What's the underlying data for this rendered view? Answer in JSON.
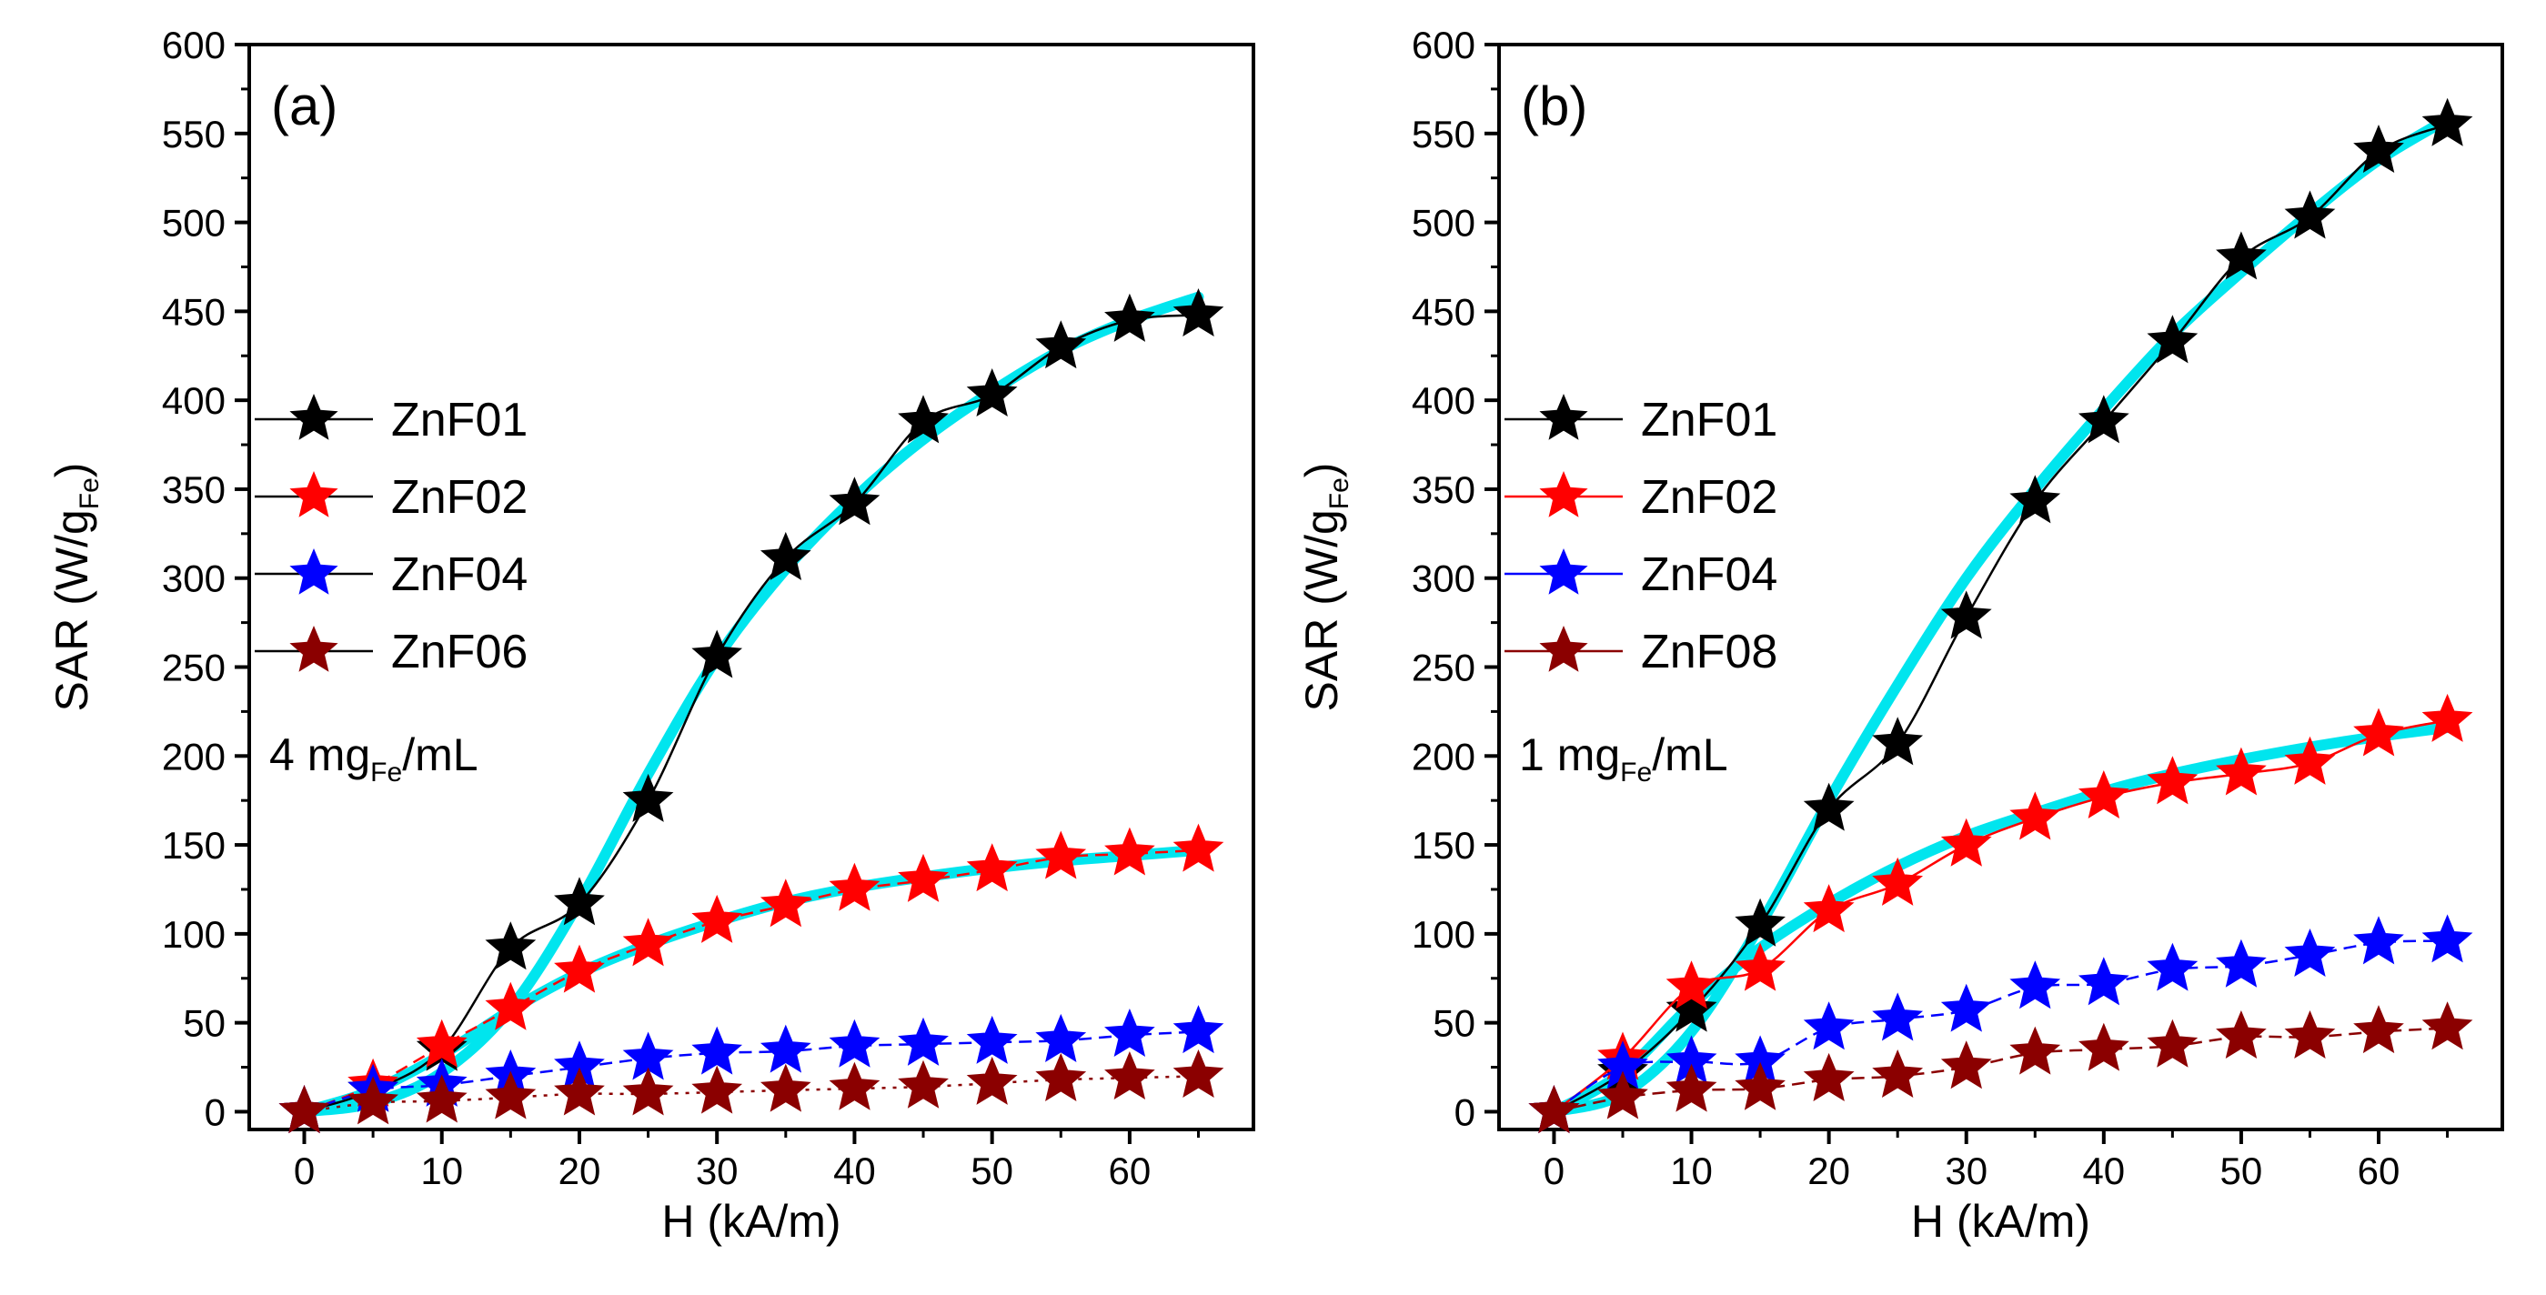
{
  "chart_data": [
    {
      "type": "line",
      "panel_label": "(a)",
      "xlabel": "H (kA/m)",
      "ylabel": {
        "main": "SAR (W/g",
        "sub": "Fe",
        "end": ")"
      },
      "xlim": [
        -4,
        69
      ],
      "ylim": [
        -10,
        600
      ],
      "xticks": [
        0,
        10,
        20,
        30,
        40,
        50,
        60
      ],
      "yticks": [
        0,
        50,
        100,
        150,
        200,
        250,
        300,
        350,
        400,
        450,
        500,
        550,
        600
      ],
      "annotation": {
        "pre": "4 mg",
        "sub": "Fe",
        "post": "/mL"
      },
      "legend_position": "center-left",
      "series": [
        {
          "name": "ZnF01",
          "color": "#000000",
          "line_style": "solid",
          "x": [
            0,
            5,
            10,
            15,
            20,
            25,
            30,
            35,
            40,
            45,
            50,
            55,
            60,
            65
          ],
          "y": [
            0,
            12,
            35,
            92,
            117,
            175,
            256,
            311,
            342,
            388,
            403,
            430,
            445,
            448
          ],
          "fit": [
            0,
            5,
            22,
            58,
            118,
            190,
            255,
            305,
            345,
            378,
            405,
            428,
            445,
            458
          ]
        },
        {
          "name": "ZnF02",
          "color": "#ff0000",
          "line_style": "dash",
          "x": [
            0,
            5,
            10,
            15,
            20,
            25,
            30,
            35,
            40,
            45,
            50,
            55,
            60,
            65
          ],
          "y": [
            0,
            15,
            37,
            58,
            79,
            94,
            107,
            116,
            125,
            130,
            136,
            143,
            145,
            147
          ],
          "fit": [
            0,
            12,
            32,
            57,
            78,
            94,
            107,
            118,
            126,
            132,
            137,
            141,
            144,
            147
          ]
        },
        {
          "name": "ZnF04",
          "color": "#0000ff",
          "line_style": "dash",
          "x": [
            0,
            5,
            10,
            15,
            20,
            25,
            30,
            35,
            40,
            45,
            50,
            55,
            60,
            65
          ],
          "y": [
            0,
            12,
            15,
            20,
            25,
            30,
            33,
            34,
            37,
            38,
            39,
            40,
            43,
            45
          ]
        },
        {
          "name": "ZnF06",
          "color": "#8b0000",
          "line_style": "dot",
          "x": [
            0,
            5,
            10,
            15,
            20,
            25,
            30,
            35,
            40,
            45,
            50,
            55,
            60,
            65
          ],
          "y": [
            0,
            5,
            6,
            8,
            10,
            10,
            11,
            12,
            13,
            14,
            16,
            18,
            19,
            20
          ]
        }
      ]
    },
    {
      "type": "line",
      "panel_label": "(b)",
      "xlabel": "H (kA/m)",
      "ylabel": {
        "main": "SAR (W/g",
        "sub": "Fe",
        "end": ")"
      },
      "xlim": [
        -4,
        69
      ],
      "ylim": [
        -10,
        600
      ],
      "xticks": [
        0,
        10,
        20,
        30,
        40,
        50,
        60
      ],
      "yticks": [
        0,
        50,
        100,
        150,
        200,
        250,
        300,
        350,
        400,
        450,
        500,
        550,
        600
      ],
      "annotation": {
        "pre": "1 mg",
        "sub": "Fe",
        "post": "/mL"
      },
      "legend_position": "center-left",
      "series": [
        {
          "name": "ZnF01",
          "color": "#000000",
          "line_style": "solid",
          "x": [
            0,
            5,
            10,
            15,
            20,
            25,
            30,
            35,
            40,
            45,
            50,
            55,
            60,
            65
          ],
          "y": [
            0,
            22,
            57,
            105,
            170,
            207,
            278,
            343,
            388,
            433,
            480,
            503,
            540,
            555
          ],
          "fit": [
            0,
            10,
            45,
            105,
            175,
            240,
            300,
            350,
            395,
            437,
            472,
            505,
            535,
            558
          ]
        },
        {
          "name": "ZnF02",
          "color": "#ff0000",
          "line_style": "solid",
          "x": [
            0,
            5,
            10,
            15,
            20,
            25,
            30,
            35,
            40,
            45,
            50,
            55,
            60,
            65
          ],
          "y": [
            0,
            30,
            70,
            80,
            113,
            128,
            150,
            165,
            177,
            185,
            190,
            196,
            212,
            220
          ],
          "fit": [
            0,
            22,
            60,
            92,
            117,
            138,
            155,
            168,
            180,
            190,
            198,
            205,
            211,
            216
          ]
        },
        {
          "name": "ZnF04",
          "color": "#0000ff",
          "line_style": "dash",
          "x": [
            0,
            5,
            10,
            15,
            20,
            25,
            30,
            35,
            40,
            45,
            50,
            55,
            60,
            65
          ],
          "y": [
            0,
            25,
            28,
            28,
            47,
            52,
            57,
            70,
            72,
            80,
            82,
            88,
            95,
            96
          ]
        },
        {
          "name": "ZnF08",
          "color": "#8b0000",
          "line_style": "dash",
          "x": [
            0,
            5,
            10,
            15,
            20,
            25,
            30,
            35,
            40,
            45,
            50,
            55,
            60,
            65
          ],
          "y": [
            0,
            8,
            12,
            13,
            18,
            20,
            25,
            33,
            35,
            37,
            42,
            42,
            45,
            47
          ]
        }
      ]
    }
  ],
  "fit_color": "#00e5ee"
}
